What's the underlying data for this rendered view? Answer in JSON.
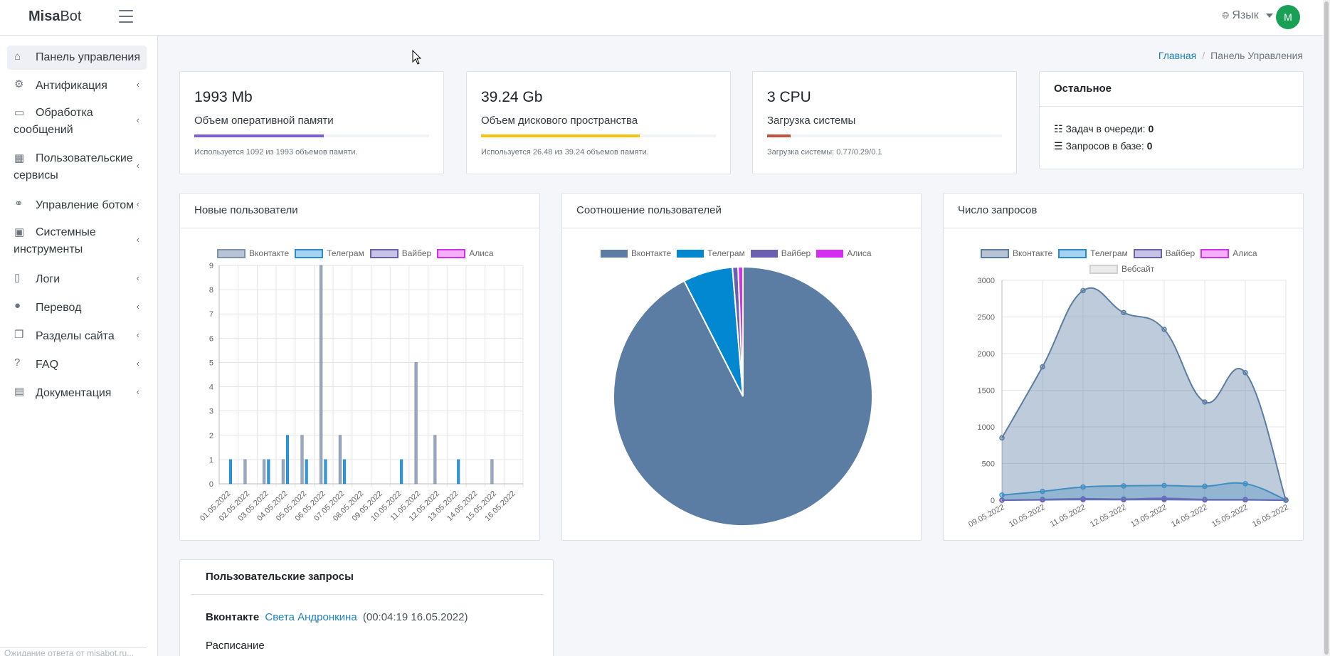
{
  "app": {
    "brand_bold": "Misa",
    "brand_light": "Bot",
    "lang_label": "Язык",
    "avatar_letter": "M"
  },
  "sidebar": {
    "items": [
      {
        "label": "Панель управления",
        "icon": "home-icon",
        "active": true
      },
      {
        "label": "Антификация",
        "icon": "users-cog-icon"
      },
      {
        "label": "Обработка сообщений",
        "icon": "chat-icon"
      },
      {
        "label": "Пользовательские сервисы",
        "icon": "grid-icon"
      },
      {
        "label": "Управление ботом",
        "icon": "network-icon"
      },
      {
        "label": "Системные инструменты",
        "icon": "toolbox-icon"
      },
      {
        "label": "Логи",
        "icon": "file-icon"
      },
      {
        "label": "Перевод",
        "icon": "globe-icon"
      },
      {
        "label": "Разделы сайта",
        "icon": "copy-icon"
      },
      {
        "label": "FAQ",
        "icon": "question-circle-icon"
      },
      {
        "label": "Документация",
        "icon": "book-icon"
      }
    ],
    "footer_text": "Ожидание ответа от misabot.ru..."
  },
  "breadcrumb": {
    "home": "Главная",
    "current": "Панель Управления"
  },
  "stats": [
    {
      "value": "1993 Mb",
      "label": "Объем оперативной памяти",
      "progress": 0.55,
      "color": "#7a5fd6",
      "note": "Используется 1092 из 1993 объемов памяти."
    },
    {
      "value": "39.24 Gb",
      "label": "Объем дискового пространства",
      "progress": 0.675,
      "color": "#f5c211",
      "note": "Используется 26.48 из 39.24 объемов памяти."
    },
    {
      "value": "3 CPU",
      "label": "Загрузка системы",
      "progress": 0.1,
      "color": "#c0533f",
      "note": "Загрузка системы: 0.77/0.29/0.1"
    }
  ],
  "other": {
    "title": "Остальное",
    "queue_label": "Задач в очереди:",
    "queue_value": "0",
    "db_label": "Запросов в базе:",
    "db_value": "0"
  },
  "charts": {
    "new_users_title": "Новые пользователи",
    "ratio_title": "Соотношение пользователей",
    "requests_title": "Число запросов",
    "legend": {
      "vk": "Вконтакте",
      "tg": "Телеграм",
      "viber": "Вайбер",
      "alisa": "Алиса",
      "web": "Вебсайт"
    }
  },
  "chart_data": [
    {
      "type": "bar",
      "title": "Новые пользователи",
      "categories": [
        "01.05.2022",
        "02.05.2022",
        "03.05.2022",
        "04.05.2022",
        "05.05.2022",
        "06.05.2022",
        "07.05.2022",
        "08.05.2022",
        "09.05.2022",
        "10.05.2022",
        "11.05.2022",
        "12.05.2022",
        "13.05.2022",
        "14.05.2022",
        "15.05.2022",
        "16.05.2022"
      ],
      "series": [
        {
          "name": "Вконтакте",
          "values": [
            0,
            1,
            1,
            1,
            2,
            9,
            2,
            0,
            0,
            0,
            5,
            2,
            0,
            0,
            1,
            0
          ]
        },
        {
          "name": "Телеграм",
          "values": [
            1,
            0,
            1,
            2,
            1,
            1,
            1,
            0,
            0,
            1,
            0,
            0,
            1,
            0,
            0,
            0
          ]
        },
        {
          "name": "Вайбер",
          "values": [
            0,
            0,
            0,
            0,
            0,
            0,
            0,
            0,
            0,
            0,
            0,
            0,
            0,
            0,
            0,
            0
          ]
        },
        {
          "name": "Алиса",
          "values": [
            0,
            0,
            0,
            0,
            0,
            0,
            0,
            0,
            0,
            0,
            0,
            0,
            0,
            0,
            0,
            0
          ]
        }
      ],
      "ylim": [
        0,
        9
      ],
      "yticks": [
        0,
        1,
        2,
        3,
        4,
        5,
        6,
        7,
        8,
        9
      ],
      "colors": {
        "Вконтакте": "#9aa9c0",
        "Телеграм": "#3199d8",
        "Вайбер": "#b4b7d9",
        "Алиса": "#f0a0f0"
      },
      "grid": true,
      "legend_position": "top"
    },
    {
      "type": "pie",
      "title": "Соотношение пользователей",
      "labels": [
        "Вконтакте",
        "Телеграм",
        "Вайбер",
        "Алиса"
      ],
      "values": [
        92.5,
        6.2,
        0.7,
        0.6
      ],
      "colors": [
        "#5b7da3",
        "#0288d1",
        "#6a5fb0",
        "#d42ef0"
      ],
      "legend_position": "top"
    },
    {
      "type": "area",
      "title": "Число запросов",
      "x": [
        "09.05.2022",
        "10.05.2022",
        "11.05.2022",
        "12.05.2022",
        "13.05.2022",
        "14.05.2022",
        "15.05.2022",
        "16.05.2022"
      ],
      "series": [
        {
          "name": "Вконтакте",
          "values": [
            850,
            1820,
            2860,
            2560,
            2330,
            1340,
            1740,
            0
          ]
        },
        {
          "name": "Телеграм",
          "values": [
            70,
            120,
            180,
            195,
            200,
            190,
            225,
            5
          ]
        },
        {
          "name": "Вайбер",
          "values": [
            0,
            5,
            10,
            8,
            10,
            5,
            5,
            0
          ]
        },
        {
          "name": "Алиса",
          "values": [
            0,
            10,
            20,
            15,
            25,
            10,
            8,
            0
          ]
        },
        {
          "name": "Вебсайт",
          "values": [
            0,
            0,
            0,
            0,
            0,
            0,
            0,
            0
          ]
        }
      ],
      "ylim": [
        0,
        3000
      ],
      "yticks": [
        0,
        500,
        1000,
        1500,
        2000,
        2500,
        3000
      ],
      "colors": {
        "Вконтакте": "#5b7da3",
        "Телеграм": "#3199d8",
        "Вайбер": "#6a5fb0",
        "Алиса": "#c02ee0",
        "Вебсайт": "#dddddd"
      },
      "grid": true,
      "legend_position": "top"
    }
  ],
  "requests": {
    "title": "Пользовательские запросы",
    "platform": "Вконтакте",
    "user": "Света Андронкина",
    "time": "(00:04:19 16.05.2022)",
    "message": "Расписание"
  }
}
